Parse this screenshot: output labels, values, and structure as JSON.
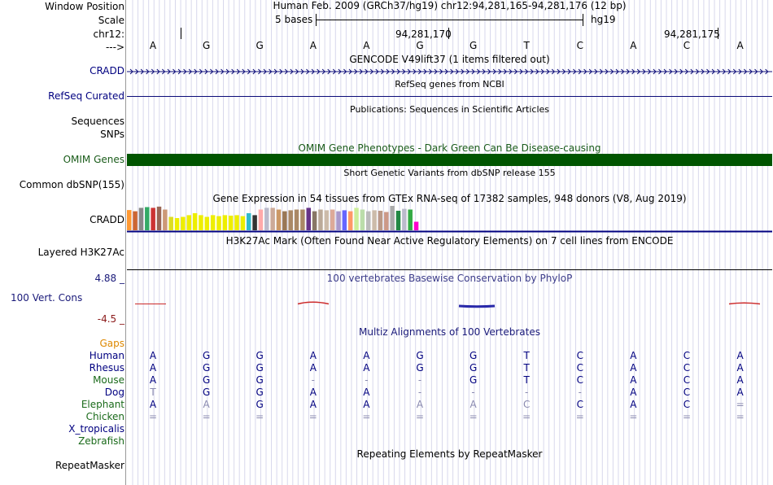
{
  "ruler": {
    "window_position_label": "Window Position",
    "scale_label": "Scale",
    "chrom_label": "chr12:",
    "arrow_label": "--->",
    "position_title": "Human Feb. 2009 (GRCh37/hg19)   chr12:94,281,165-94,281,176 (12 bp)",
    "scale_text": "5 bases",
    "assembly": "hg19",
    "coord1": "94,281,170",
    "coord2": "94,281,175",
    "bases": [
      "A",
      "G",
      "G",
      "A",
      "A",
      "G",
      "G",
      "T",
      "C",
      "A",
      "C",
      "A"
    ]
  },
  "tracks": {
    "gencode": {
      "title": "GENCODE V49lift37 (1 items filtered out)",
      "label": "CRADD"
    },
    "refseq": {
      "title": "RefSeq genes from NCBI",
      "label": "RefSeq Curated"
    },
    "publications": {
      "title": "Publications: Sequences in Scientific Articles",
      "label1": "Sequences",
      "label2": "SNPs"
    },
    "omim": {
      "title": "OMIM Gene Phenotypes - Dark Green Can Be Disease-causing",
      "label": "OMIM Genes",
      "color": "#005500"
    },
    "dbsnp": {
      "title": "Short Genetic Variants from dbSNP release 155",
      "label": "Common dbSNP(155)"
    },
    "gtex": {
      "title": "Gene Expression in 54 tissues from GTEx RNA-seq of 17382 samples, 948 donors (V8, Aug 2019)",
      "label": "CRADD"
    },
    "h3k27ac": {
      "title": "H3K27Ac Mark (Often Found Near Active Regulatory Elements) on 7 cell lines from ENCODE",
      "label": "Layered H3K27Ac"
    },
    "phylop": {
      "title": "100 vertebrates Basewise Conservation by PhyloP",
      "label": "100 Vert. Cons",
      "max": "4.88 _",
      "min": "-4.5 _"
    },
    "multiz": {
      "title": "Multiz Alignments of 100 Vertebrates",
      "gaps_label": "Gaps",
      "species": [
        {
          "name": "Human",
          "bases": [
            "A",
            "G",
            "G",
            "A",
            "A",
            "G",
            "G",
            "T",
            "C",
            "A",
            "C",
            "A"
          ]
        },
        {
          "name": "Rhesus",
          "bases": [
            "A",
            "G",
            "G",
            "A",
            "A",
            "G",
            "G",
            "T",
            "C",
            "A",
            "C",
            "A"
          ]
        },
        {
          "name": "Mouse",
          "bases": [
            "A",
            "G",
            "G",
            "-",
            "-",
            "-",
            "G",
            "T",
            "C",
            "A",
            "C",
            "A"
          ]
        },
        {
          "name": "Dog",
          "bases": [
            "T",
            "G",
            "G",
            "A",
            "A",
            "-",
            "-",
            "-",
            "-",
            "A",
            "C",
            "A"
          ]
        },
        {
          "name": "Elephant",
          "bases": [
            "A",
            "A",
            "G",
            "A",
            "A",
            "A",
            "A",
            "C",
            "C",
            "A",
            "C",
            "="
          ]
        },
        {
          "name": "Chicken",
          "bases": [
            "=",
            "=",
            "=",
            "=",
            "=",
            "=",
            "=",
            "=",
            "=",
            "=",
            "=",
            "="
          ]
        },
        {
          "name": "X_tropicalis",
          "bases": []
        },
        {
          "name": "Zebrafish",
          "bases": []
        }
      ]
    },
    "repeatmasker": {
      "title": "Repeating Elements by RepeatMasker",
      "label": "RepeatMasker"
    }
  },
  "gtex_bars": [
    {
      "h": 0.83,
      "c": "#ff9933"
    },
    {
      "h": 0.78,
      "c": "#cc6633"
    },
    {
      "h": 0.92,
      "c": "#888888"
    },
    {
      "h": 0.95,
      "c": "#33aa66"
    },
    {
      "h": 0.92,
      "c": "#cc3333"
    },
    {
      "h": 0.97,
      "c": "#996655"
    },
    {
      "h": 0.85,
      "c": "#cc9977"
    },
    {
      "h": 0.55,
      "c": "#dddd22"
    },
    {
      "h": 0.5,
      "c": "#eeee00"
    },
    {
      "h": 0.55,
      "c": "#eeee00"
    },
    {
      "h": 0.62,
      "c": "#eeee00"
    },
    {
      "h": 0.7,
      "c": "#eeee00"
    },
    {
      "h": 0.62,
      "c": "#eeee00"
    },
    {
      "h": 0.55,
      "c": "#eeee00"
    },
    {
      "h": 0.62,
      "c": "#eeee00"
    },
    {
      "h": 0.58,
      "c": "#eeee00"
    },
    {
      "h": 0.62,
      "c": "#eeee00"
    },
    {
      "h": 0.6,
      "c": "#eeee00"
    },
    {
      "h": 0.62,
      "c": "#eeee00"
    },
    {
      "h": 0.58,
      "c": "#eeee00"
    },
    {
      "h": 0.7,
      "c": "#33bbcc"
    },
    {
      "h": 0.62,
      "c": "#333333"
    },
    {
      "h": 0.85,
      "c": "#ffaaaa"
    },
    {
      "h": 0.92,
      "c": "#bbbbcc"
    },
    {
      "h": 0.92,
      "c": "#ccaa99"
    },
    {
      "h": 0.85,
      "c": "#cc9966"
    },
    {
      "h": 0.78,
      "c": "#997755"
    },
    {
      "h": 0.82,
      "c": "#aa8866"
    },
    {
      "h": 0.85,
      "c": "#aa8866"
    },
    {
      "h": 0.85,
      "c": "#aa8866"
    },
    {
      "h": 0.92,
      "c": "#663388"
    },
    {
      "h": 0.78,
      "c": "#887766"
    },
    {
      "h": 0.85,
      "c": "#bbaa99"
    },
    {
      "h": 0.82,
      "c": "#ccbbaa"
    },
    {
      "h": 0.85,
      "c": "#ddaa99"
    },
    {
      "h": 0.78,
      "c": "#aa99cc"
    },
    {
      "h": 0.82,
      "c": "#6666ff"
    },
    {
      "h": 0.78,
      "c": "#ff9966"
    },
    {
      "h": 0.92,
      "c": "#ccee99"
    },
    {
      "h": 0.85,
      "c": "#bbddaa"
    },
    {
      "h": 0.78,
      "c": "#bbbbbb"
    },
    {
      "h": 0.82,
      "c": "#ccbbaa"
    },
    {
      "h": 0.8,
      "c": "#bb9988"
    },
    {
      "h": 0.75,
      "c": "#cc9988"
    },
    {
      "h": 1.0,
      "c": "#aaaaaa"
    },
    {
      "h": 0.8,
      "c": "#228844"
    },
    {
      "h": 0.88,
      "c": "#bbbbcc"
    },
    {
      "h": 0.85,
      "c": "#33aa44"
    },
    {
      "h": 0.35,
      "c": "#ff00cc"
    }
  ]
}
